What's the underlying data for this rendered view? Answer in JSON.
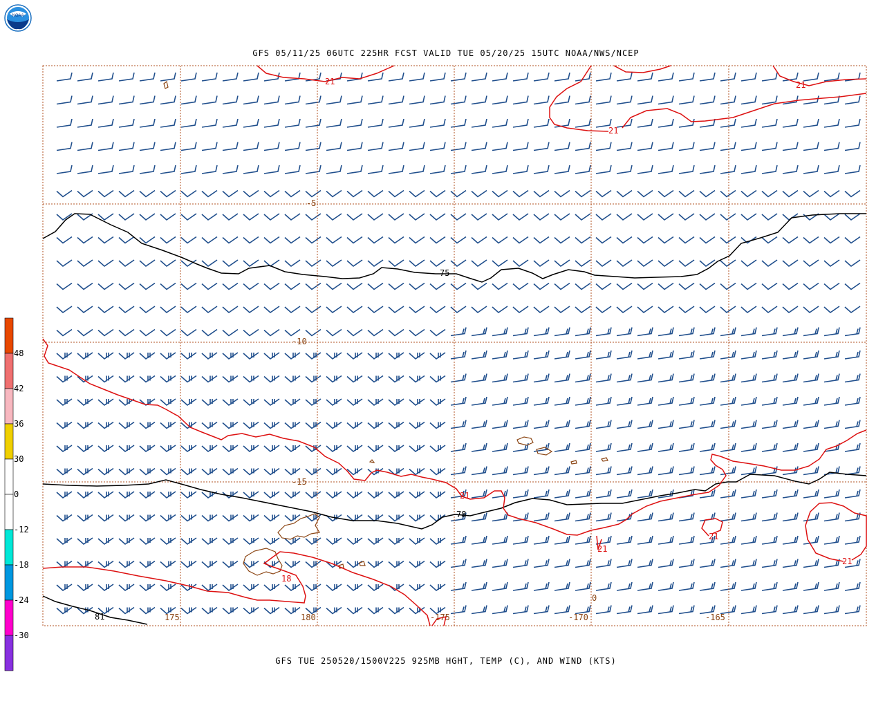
{
  "header": {
    "title": "GFS 05/11/25 06UTC 225HR FCST VALID TUE 05/20/25 15UTC NOAA/NWS/NCEP",
    "logo_text": "NOAA"
  },
  "footer": {
    "caption": "GFS TUE 250520/1500V225 925MB HGHT, TEMP (C), AND WIND (KTS)"
  },
  "colors": {
    "wind": "#1f4e8c",
    "temp_contour": "#dd1111",
    "height_contour": "#000000",
    "coastline": "#8b4513",
    "grid": "#b05020",
    "grid_label": "#8b4513"
  },
  "colorbar": {
    "labels": [
      "48",
      "42",
      "36",
      "30",
      "0",
      "-12",
      "-18",
      "-24",
      "-30"
    ],
    "colors": [
      "#e84800",
      "#f07070",
      "#f8b8c0",
      "#f0d000",
      "#ffffff",
      "#ffffff",
      "#00e8d8",
      "#0098e0",
      "#ff00cc",
      "#8830e0"
    ]
  },
  "grid_labels": {
    "latitudes": [
      "-5",
      "-10",
      "-15"
    ],
    "longitudes": [
      "175",
      "180",
      "-175",
      "-170",
      "-165"
    ]
  },
  "contour_labels": {
    "height": [
      "75",
      "78",
      "81"
    ],
    "temperature": [
      "21",
      "21",
      "21",
      "21",
      "21",
      "21",
      "21",
      "18"
    ],
    "misc": [
      "0"
    ]
  }
}
